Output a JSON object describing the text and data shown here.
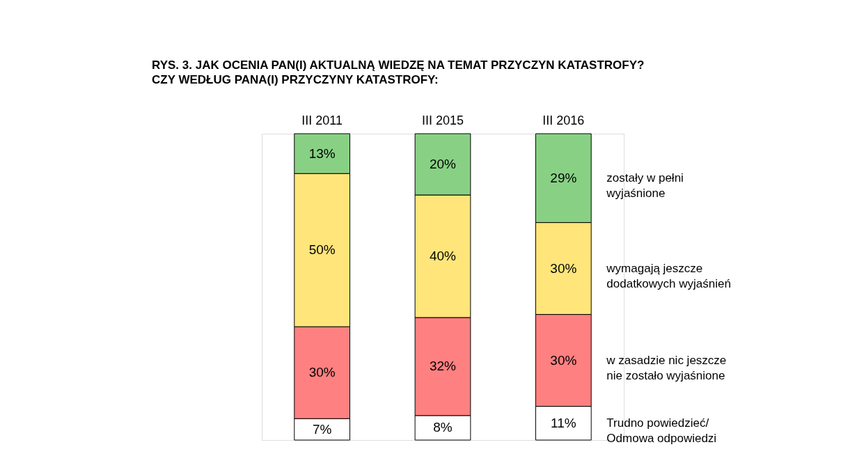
{
  "chart_data": {
    "type": "bar",
    "stacked": true,
    "title": "RYS. 3. JAK OCENIA PAN(I) AKTUALNĄ WIEDZĘ NA TEMAT PRZYCZYN KATASTROFY?",
    "subtitle": "CZY WEDŁUG PANA(I) PRZYCZYNY KATASTROFY:",
    "categories": [
      "III 2011",
      "III 2015",
      "III 2016"
    ],
    "legend": false,
    "series": [
      {
        "name": "Trudno powiedzieć/ Odmowa odpowiedzi",
        "color": "#ffffff",
        "values": [
          7,
          8,
          11
        ],
        "value_labels": [
          "7%",
          "8%",
          "11%"
        ]
      },
      {
        "name": "w zasadzie nic jeszcze nie zostało wyjaśnione",
        "color": "#ff8080",
        "values": [
          30,
          32,
          30
        ],
        "value_labels": [
          "30%",
          "32%",
          "30%"
        ]
      },
      {
        "name": "wymagają jeszcze dodatkowych wyjaśnień",
        "color": "#ffe57a",
        "values": [
          50,
          40,
          30
        ],
        "value_labels": [
          "50%",
          "40%",
          "30%"
        ]
      },
      {
        "name": "zostały w pełni wyjaśnione",
        "color": "#88d184",
        "values": [
          13,
          20,
          29
        ],
        "value_labels": [
          "13%",
          "20%",
          "29%"
        ]
      }
    ]
  }
}
